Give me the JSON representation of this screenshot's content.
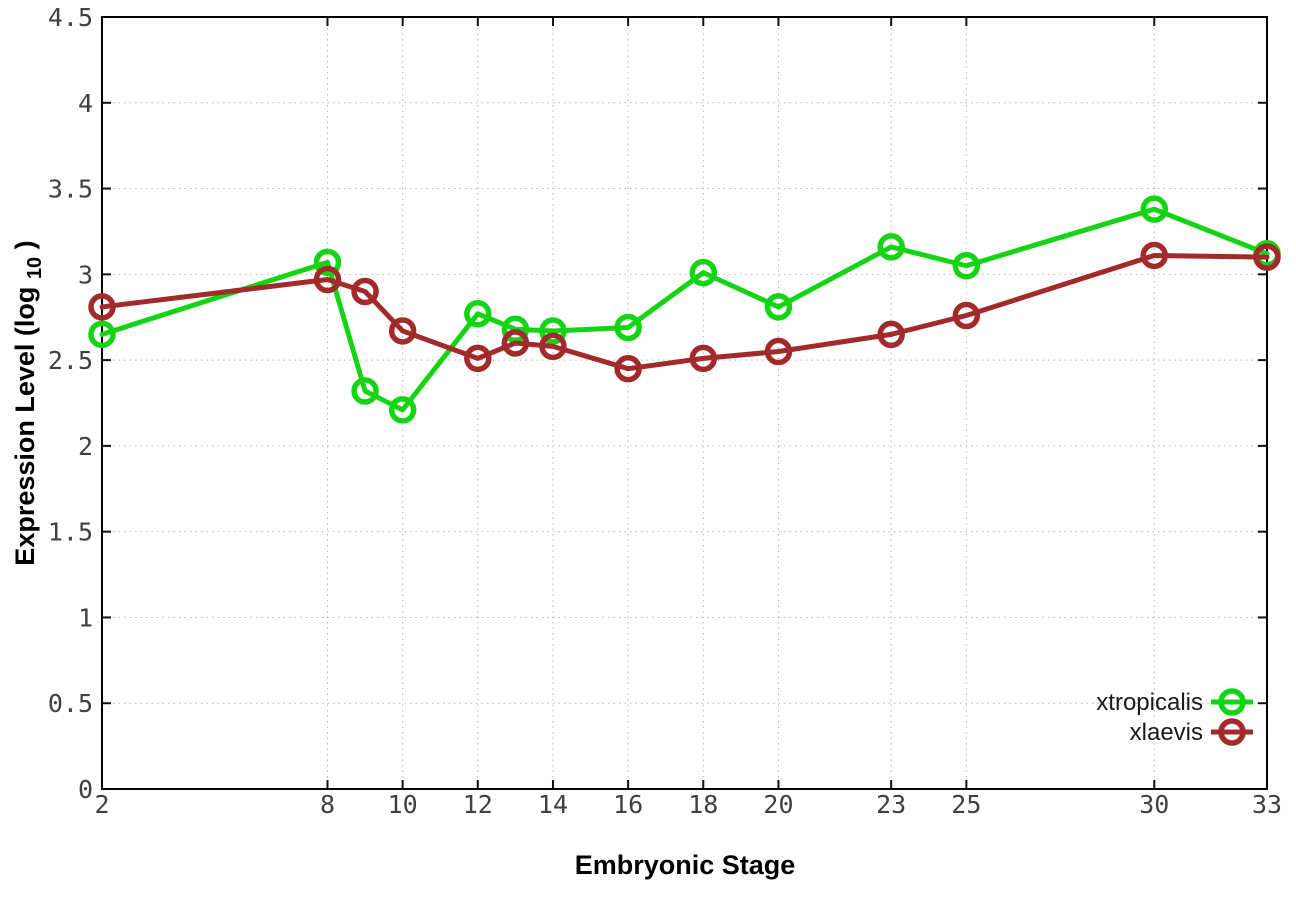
{
  "chart_data": {
    "type": "line",
    "title": "",
    "xlabel": "Embryonic Stage",
    "ylabel": "Expression Level (log10)",
    "ylabel_parts": {
      "prefix": "Expression Level (log",
      "sub": "10",
      "suffix": ")"
    },
    "xlim": [
      2,
      33
    ],
    "ylim": [
      0,
      4.5
    ],
    "x_ticks": [
      2,
      8,
      10,
      12,
      14,
      16,
      18,
      20,
      23,
      25,
      30,
      33
    ],
    "y_ticks": [
      0,
      0.5,
      1,
      1.5,
      2,
      2.5,
      3,
      3.5,
      4,
      4.5
    ],
    "grid": true,
    "legend_position": "bottom-right",
    "marker": "open-circle",
    "x": [
      2,
      8,
      9,
      10,
      12,
      13,
      14,
      16,
      18,
      20,
      23,
      25,
      30,
      33
    ],
    "series": [
      {
        "name": "xtropicalis",
        "color": "#15d415",
        "values": [
          2.65,
          3.07,
          2.32,
          2.21,
          2.77,
          2.68,
          2.67,
          2.69,
          3.01,
          2.81,
          3.16,
          3.05,
          3.38,
          3.12
        ]
      },
      {
        "name": "xlaevis",
        "color": "#a32a2a",
        "values": [
          2.81,
          2.97,
          2.9,
          2.67,
          2.51,
          2.6,
          2.58,
          2.45,
          2.51,
          2.55,
          2.65,
          2.76,
          3.11,
          3.1
        ]
      }
    ],
    "colors": {
      "grid": "#b5b5b5",
      "tick_label": "#404040",
      "axis_border": "#000000",
      "background": "#ffffff"
    }
  }
}
